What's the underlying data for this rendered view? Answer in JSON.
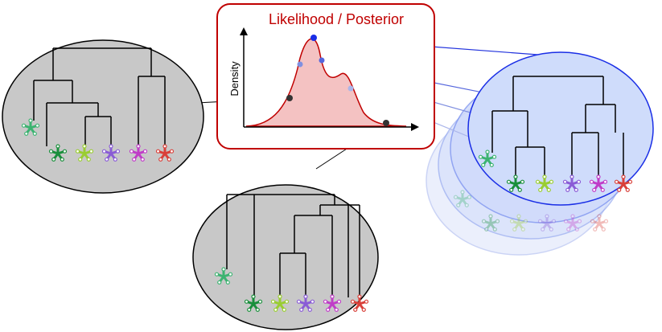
{
  "title": "Likelihood / Posterior",
  "axis_label": "Density"
}
